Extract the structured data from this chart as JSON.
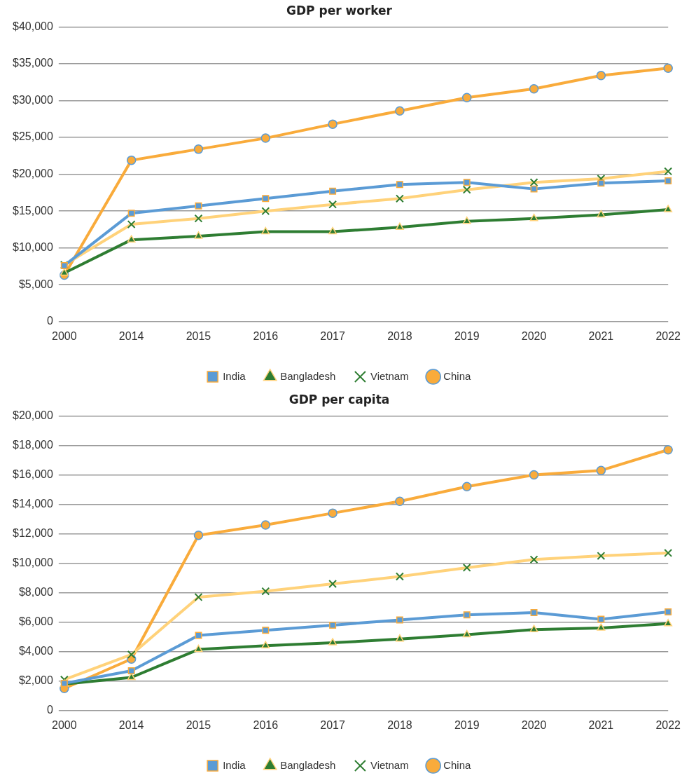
{
  "chart_data": [
    {
      "type": "line",
      "title": "GDP per worker",
      "categories": [
        "2000",
        "2014",
        "2015",
        "2016",
        "2017",
        "2018",
        "2019",
        "2020",
        "2021",
        "2022"
      ],
      "series": [
        {
          "name": "India",
          "color": "#5b9bd5",
          "marker": "square",
          "values": [
            7600,
            14700,
            15700,
            16700,
            17700,
            18600,
            18900,
            18000,
            18800,
            19100
          ]
        },
        {
          "name": "Bangladesh",
          "color": "#2e7d32",
          "marker": "triangle",
          "values": [
            6600,
            11100,
            11600,
            12200,
            12200,
            12800,
            13600,
            14000,
            14500,
            15200
          ]
        },
        {
          "name": "Vietnam",
          "color": "#ffd27a",
          "marker": "cross",
          "values": [
            7700,
            13200,
            14000,
            15000,
            15900,
            16700,
            17900,
            18900,
            19400,
            20400
          ]
        },
        {
          "name": "China",
          "color": "#f9ab3b",
          "marker": "circle",
          "values": [
            6300,
            21900,
            23400,
            24900,
            26800,
            28600,
            30400,
            31600,
            33400,
            34400
          ]
        }
      ],
      "ylim": [
        0,
        40000
      ],
      "yticks": [
        0,
        {
          "value": 5000,
          "label": "$5,000"
        },
        {
          "value": 10000,
          "label": "$10,000"
        },
        {
          "value": 15000,
          "label": "$15,000"
        },
        {
          "value": 20000,
          "label": "$20,000"
        },
        {
          "value": 25000,
          "label": "$25,000"
        },
        {
          "value": 30000,
          "label": "$30,000"
        },
        {
          "value": 35000,
          "label": "$35,000"
        },
        {
          "value": 40000,
          "label": "$40,000"
        }
      ],
      "grid": "y",
      "legend": "bottom"
    },
    {
      "type": "line",
      "title": "GDP per capita",
      "categories": [
        "2000",
        "2014",
        "2015",
        "2016",
        "2017",
        "2018",
        "2019",
        "2020",
        "2021",
        "2022"
      ],
      "series": [
        {
          "name": "India",
          "color": "#5b9bd5",
          "marker": "square",
          "values": [
            1850,
            2700,
            5100,
            5450,
            5800,
            6150,
            6500,
            6650,
            6200,
            6700
          ]
        },
        {
          "name": "Bangladesh",
          "color": "#2e7d32",
          "marker": "triangle",
          "values": [
            1800,
            2250,
            4150,
            4400,
            4600,
            4850,
            5150,
            5500,
            5600,
            5900
          ]
        },
        {
          "name": "Vietnam",
          "color": "#ffd27a",
          "marker": "cross",
          "values": [
            2100,
            3800,
            7700,
            8100,
            8600,
            9100,
            9700,
            10250,
            10500,
            10700
          ]
        },
        {
          "name": "China",
          "color": "#f9ab3b",
          "marker": "circle",
          "values": [
            1500,
            3500,
            11900,
            12600,
            13400,
            14200,
            15200,
            16000,
            16300,
            17700
          ]
        }
      ],
      "ylim": [
        0,
        20000
      ],
      "yticks": [
        0,
        {
          "value": 2000,
          "label": "$2,000"
        },
        {
          "value": 4000,
          "label": "$4,000"
        },
        {
          "value": 6000,
          "label": "$6,000"
        },
        {
          "value": 8000,
          "label": "$8,000"
        },
        {
          "value": 10000,
          "label": "$10,000"
        },
        {
          "value": 12000,
          "label": "$12,000"
        },
        {
          "value": 14000,
          "label": "$14,000"
        },
        {
          "value": 16000,
          "label": "$16,000"
        },
        {
          "value": 18000,
          "label": "$18,000"
        },
        {
          "value": 20000,
          "label": "$20,000"
        }
      ],
      "grid": "y",
      "legend": "bottom"
    }
  ]
}
